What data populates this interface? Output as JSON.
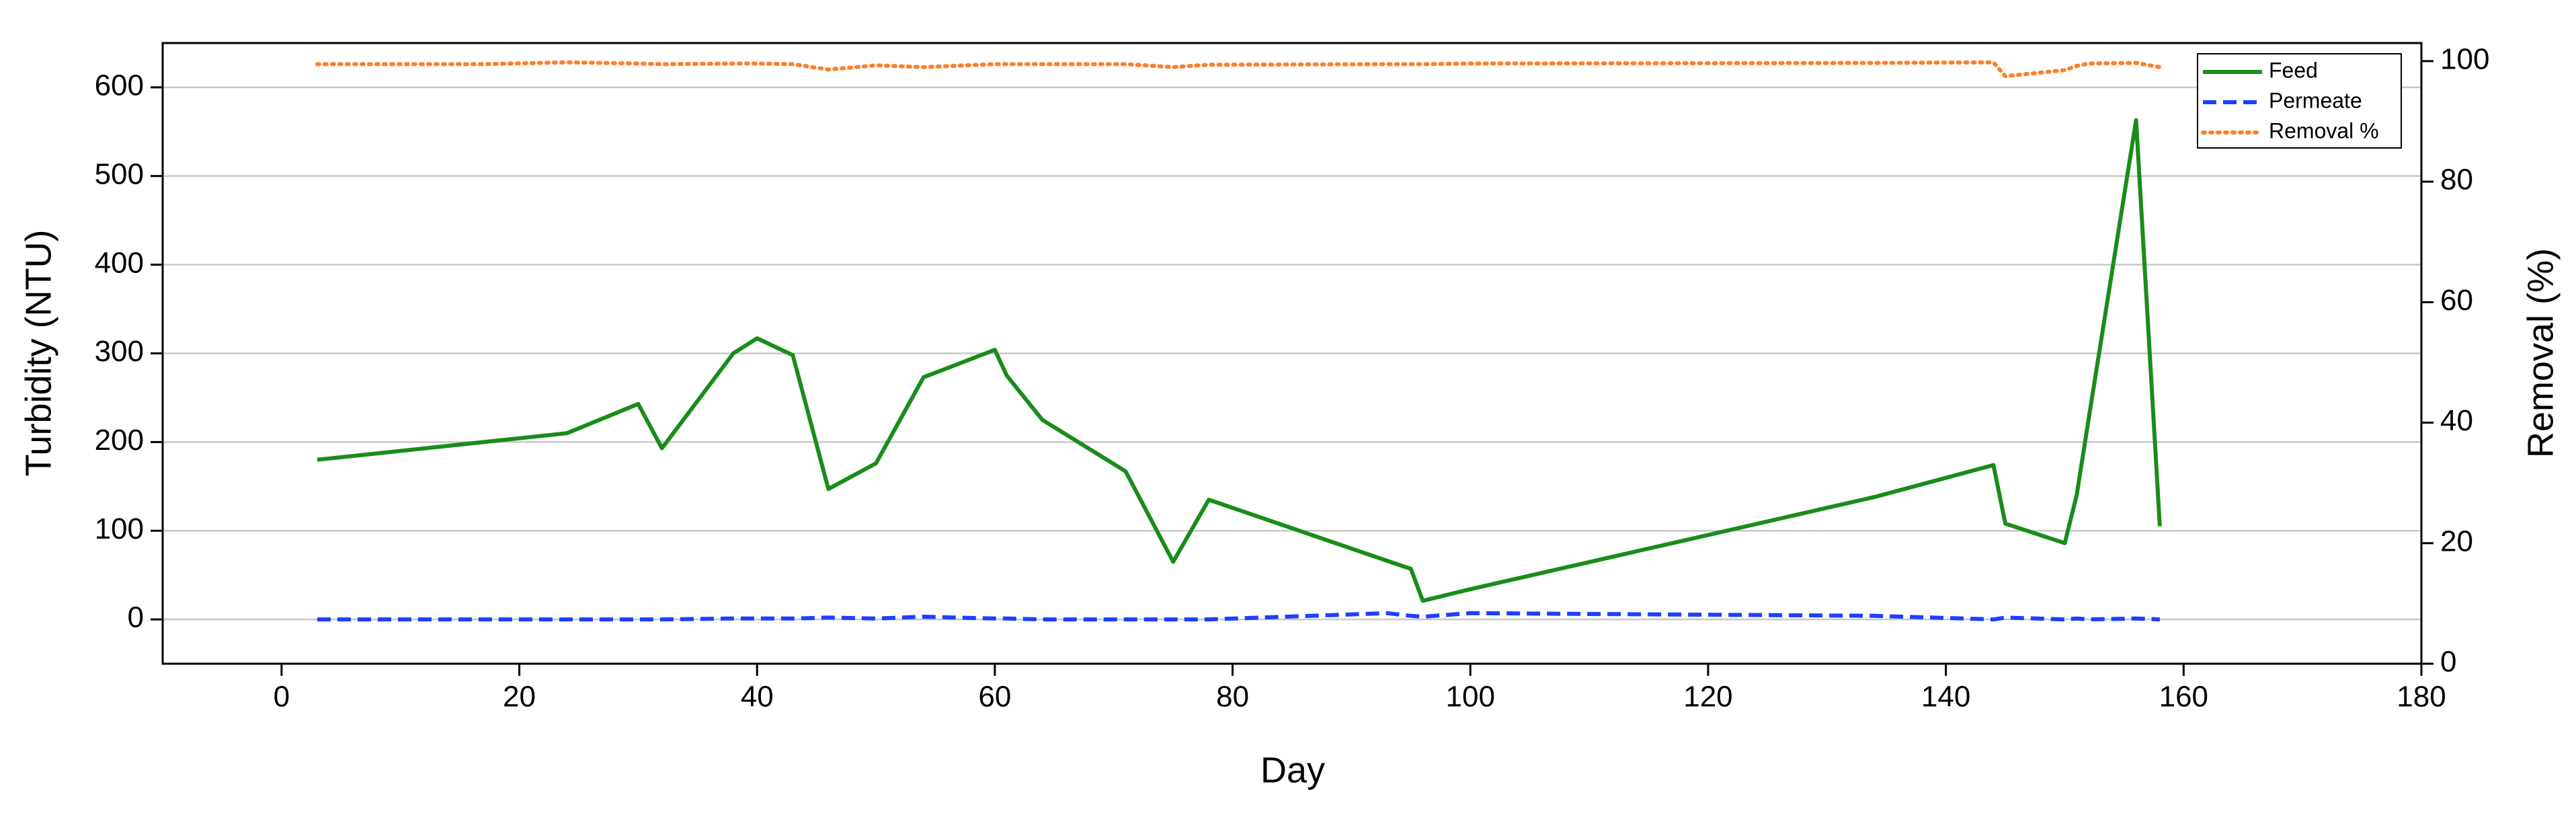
{
  "chart_data": {
    "type": "line",
    "x_label": "Day",
    "y_label": "Turbidity (NTU)",
    "y2_label": "Removal (%)",
    "x": [
      3,
      17,
      24,
      30,
      32,
      38,
      40,
      43,
      46,
      50,
      54,
      60,
      61,
      64,
      71,
      75,
      78,
      93,
      95,
      96,
      100,
      134,
      144,
      145,
      150,
      151,
      152,
      156,
      158
    ],
    "series": [
      {
        "name": "Feed",
        "color": "#1a8c1a",
        "style": "solid",
        "values": [
          180,
          200,
          210,
          243,
          193,
          300,
          317,
          298,
          147,
          176,
          273,
          304,
          275,
          225,
          167,
          65,
          135,
          66,
          57,
          21,
          34,
          138,
          174,
          108,
          86,
          140,
          225,
          563,
          105
        ]
      },
      {
        "name": "Permeate",
        "color": "#1f3fff",
        "style": "dashed",
        "values": [
          0,
          0,
          0,
          0,
          0,
          1,
          1,
          1,
          2,
          1,
          3,
          1,
          1,
          0,
          0,
          0,
          0,
          7,
          4,
          3,
          7,
          4,
          0,
          2,
          0,
          1,
          0,
          1,
          0
        ]
      },
      {
        "name": "Removal %",
        "color": "#ff7f27",
        "style": "dotted",
        "axis": "y2",
        "values": [
          99.5,
          99.5,
          99.8,
          99.6,
          99.5,
          99.6,
          99.6,
          99.5,
          98.6,
          99.3,
          99.0,
          99.5,
          99.5,
          99.5,
          99.5,
          99,
          99.4,
          99.5,
          99.5,
          99.5,
          99.6,
          99.7,
          99.8,
          97.5,
          98.5,
          99.2,
          99.6,
          99.7,
          99
        ]
      }
    ],
    "xlim": [
      -10,
      180
    ],
    "xticks": [
      0,
      20,
      40,
      60,
      80,
      100,
      120,
      140,
      160,
      180
    ],
    "ylim": [
      -50,
      650
    ],
    "yticks": [
      0,
      100,
      200,
      300,
      400,
      500,
      600
    ],
    "y2lim": [
      0,
      103
    ],
    "y2ticks": [
      0,
      20,
      40,
      60,
      80,
      100
    ],
    "grid": true,
    "legend": "upper right"
  }
}
